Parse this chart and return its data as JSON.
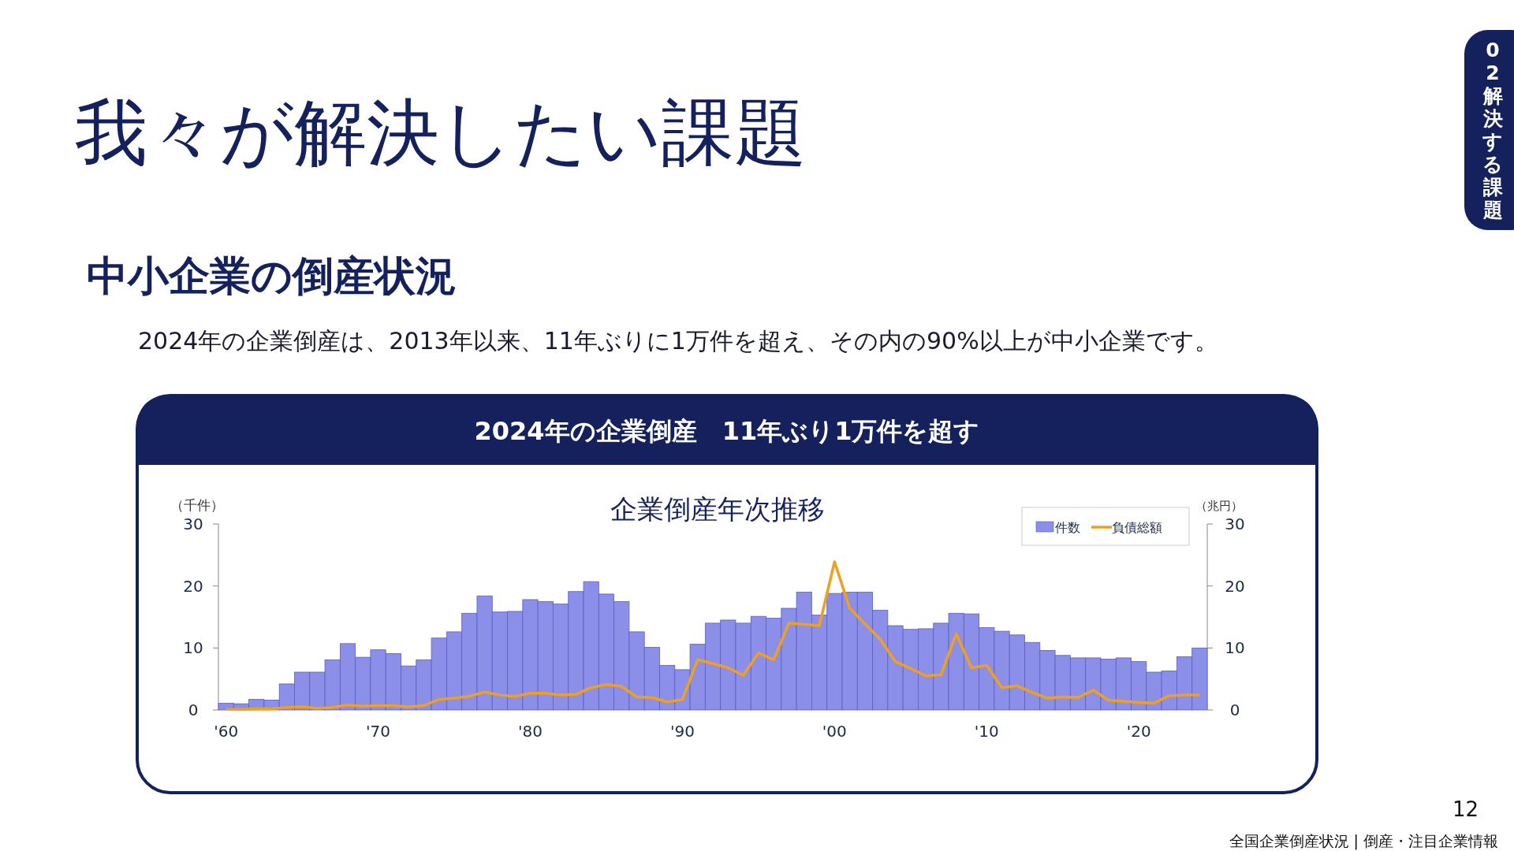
{
  "chart_data": {
    "type": "bar",
    "title": "企業倒産年次推移",
    "ylabel": "（千件）",
    "y2label": "（兆円）",
    "categories": [
      "'60",
      null,
      null,
      null,
      null,
      null,
      null,
      null,
      null,
      null,
      "'70",
      null,
      null,
      null,
      null,
      null,
      null,
      null,
      null,
      null,
      "'80",
      null,
      null,
      null,
      null,
      null,
      null,
      null,
      null,
      null,
      "'90",
      null,
      null,
      null,
      null,
      null,
      null,
      null,
      null,
      null,
      "'00",
      null,
      null,
      null,
      null,
      null,
      null,
      null,
      null,
      null,
      "'10",
      null,
      null,
      null,
      null,
      null,
      null,
      null,
      null,
      null,
      "'20",
      null,
      null,
      null,
      null
    ],
    "series": [
      {
        "name": "件数",
        "type": "bar",
        "color": "#8b8fe8",
        "values": [
          1.1,
          1.0,
          1.7,
          1.6,
          4.2,
          6.1,
          6.1,
          8.1,
          10.7,
          8.5,
          9.7,
          9.1,
          7.1,
          8.1,
          11.6,
          12.6,
          15.6,
          18.4,
          15.8,
          15.9,
          17.8,
          17.5,
          17.1,
          19.1,
          20.7,
          18.7,
          17.5,
          12.6,
          10.1,
          7.2,
          6.5,
          10.6,
          14.0,
          14.5,
          14.0,
          15.1,
          14.8,
          16.4,
          19.0,
          15.3,
          18.8,
          19.0,
          19.0,
          16.1,
          13.6,
          13.0,
          13.1,
          14.0,
          15.6,
          15.5,
          13.3,
          12.7,
          12.1,
          10.9,
          9.6,
          8.8,
          8.4,
          8.4,
          8.2,
          8.4,
          7.8,
          6.1,
          6.3,
          8.6,
          10.0
        ]
      },
      {
        "name": "負債総額",
        "type": "line",
        "axis": "y2",
        "color": "#f0a020",
        "values": [
          0.1,
          0.1,
          0.2,
          0.2,
          0.4,
          0.5,
          0.3,
          0.4,
          0.8,
          0.6,
          0.7,
          0.7,
          0.5,
          0.7,
          1.7,
          1.9,
          2.2,
          2.9,
          2.4,
          2.2,
          2.7,
          2.7,
          2.4,
          2.5,
          3.6,
          4.1,
          3.8,
          2.1,
          2.0,
          1.3,
          1.7,
          8.1,
          7.5,
          6.8,
          5.6,
          9.2,
          8.1,
          14.0,
          13.8,
          13.6,
          23.9,
          16.4,
          13.9,
          11.4,
          7.8,
          6.7,
          5.5,
          5.7,
          12.3,
          6.8,
          7.2,
          3.6,
          3.9,
          2.8,
          1.9,
          2.1,
          2.0,
          3.2,
          1.6,
          1.4,
          1.2,
          1.1,
          2.3,
          2.4,
          2.4
        ]
      }
    ],
    "ylim": [
      0,
      30
    ],
    "yticks": [
      0,
      10,
      20,
      30
    ],
    "y2lim": [
      0,
      30
    ],
    "y2ticks": [
      0,
      10,
      20,
      30
    ],
    "legend": "top right",
    "grid": false,
    "annotations": [
      "我々が解決したい課題",
      "02 解決する課題",
      "中小企業の倒産状況",
      "2024年の企業倒産は、2013年以来、11年ぶりに1万件を超え、その内の90%以上が中小企業です。",
      "2024年の企業倒産　11年ぶり1万件を超す",
      "12",
      "全国企業倒産状況 | 倒産・注目企業情報"
    ]
  }
}
